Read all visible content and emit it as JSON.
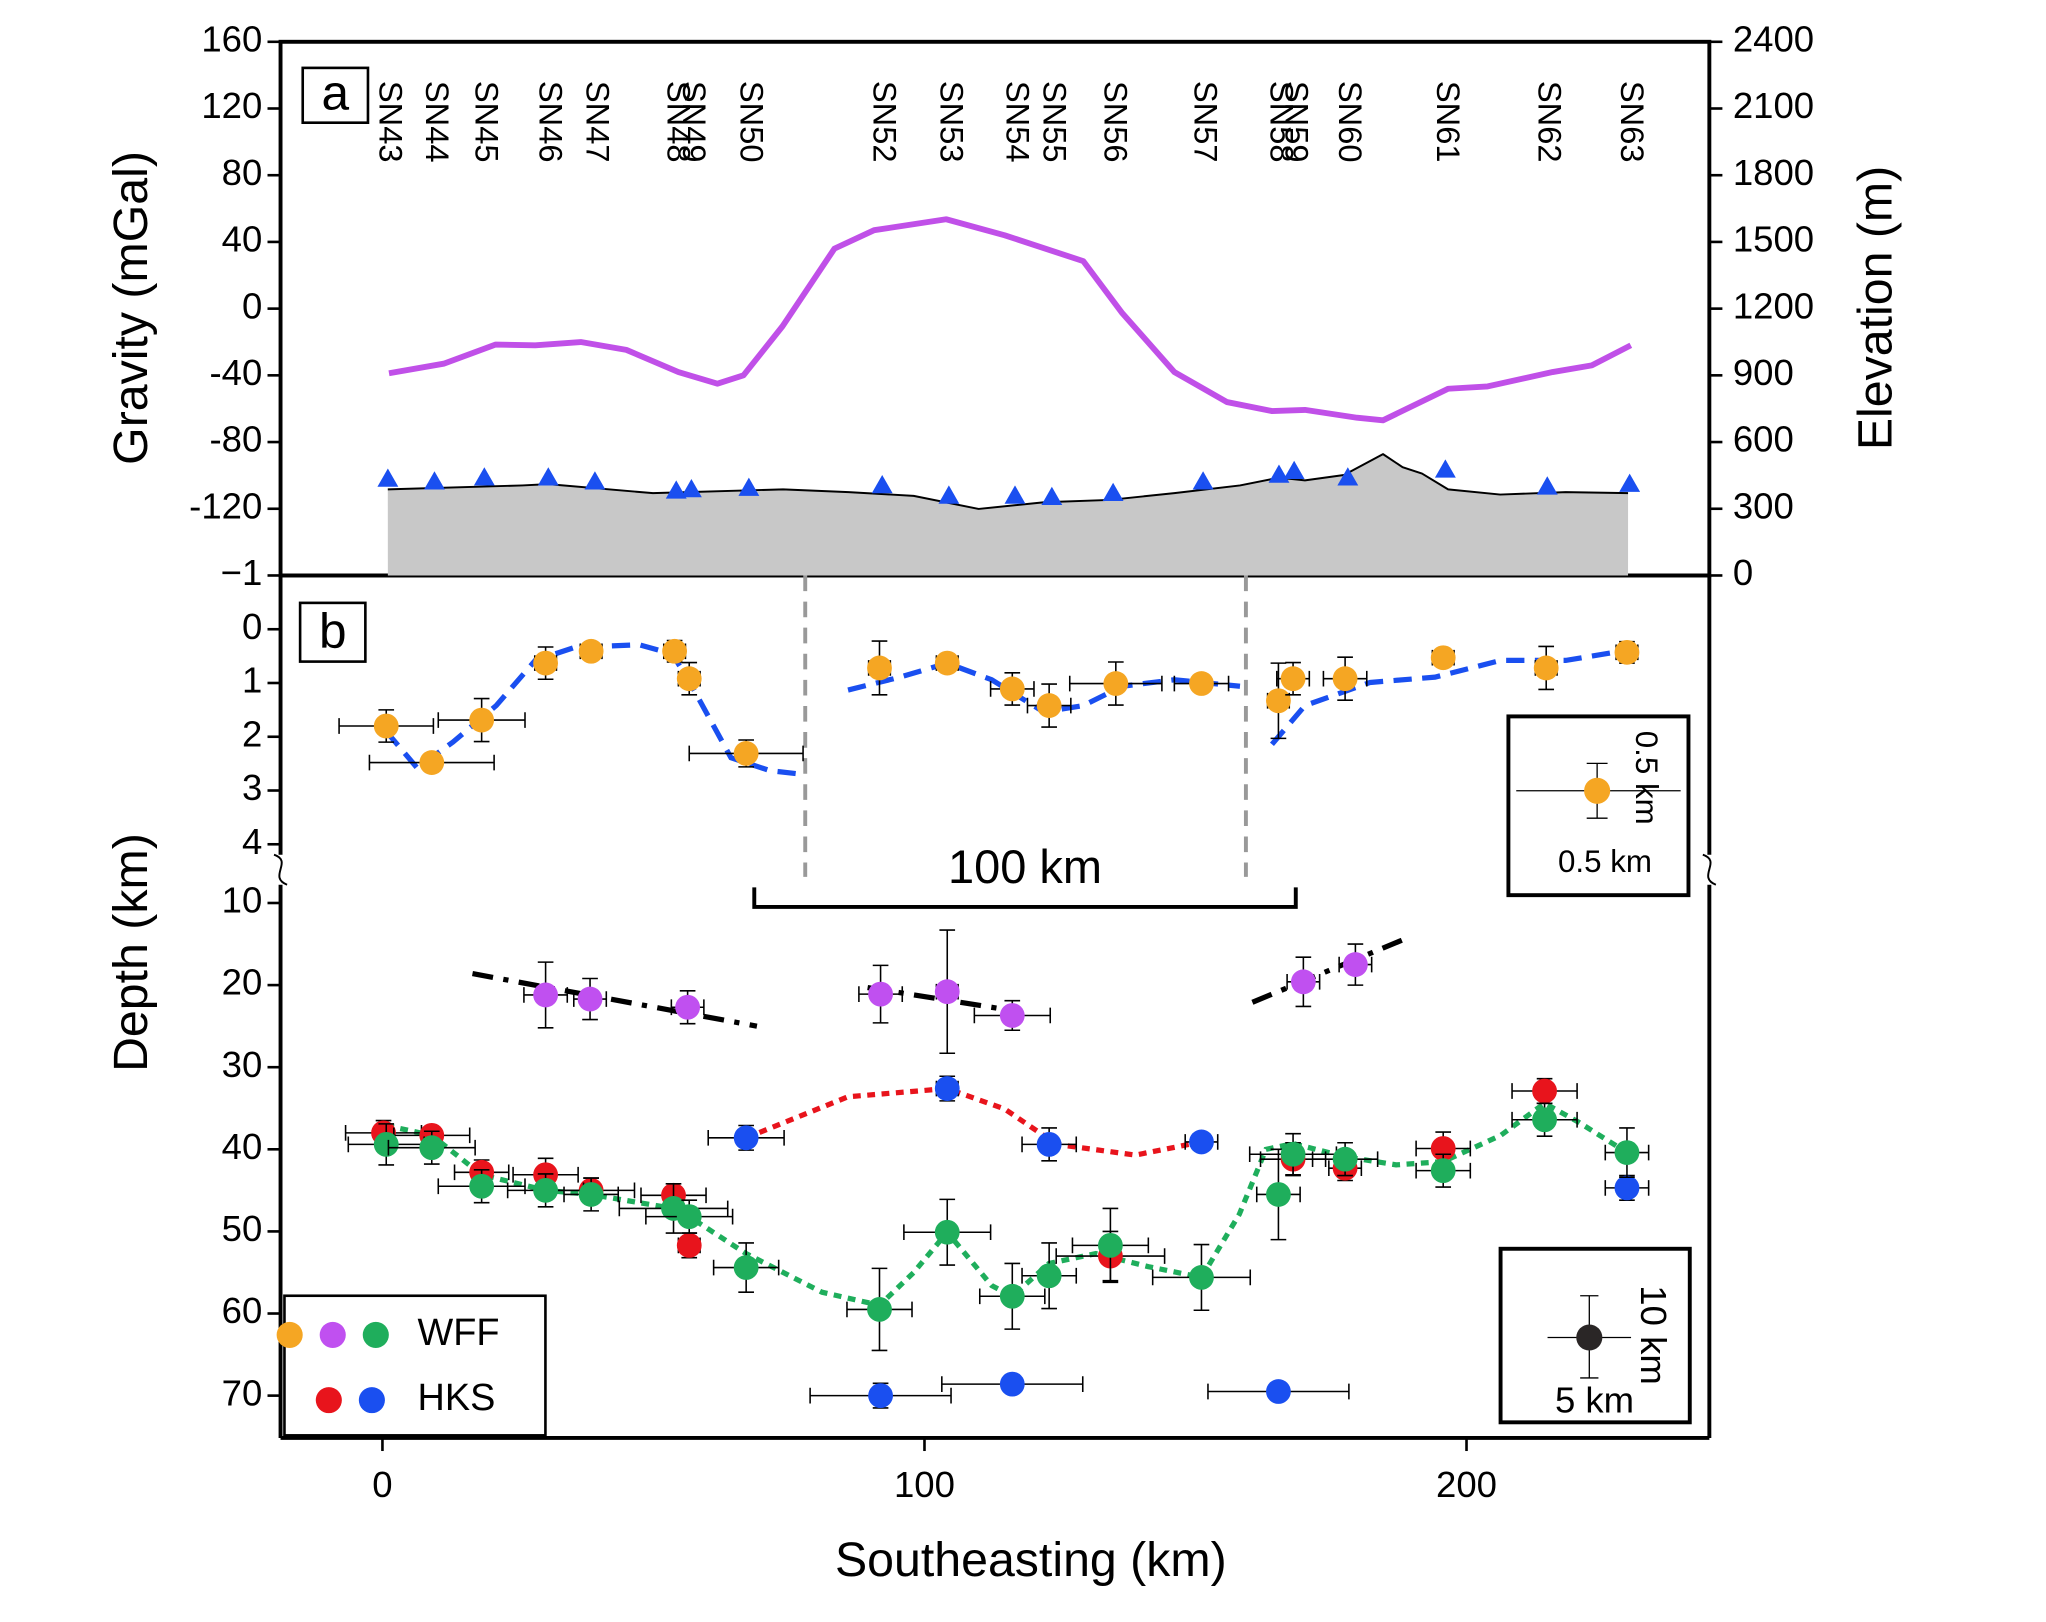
{
  "chart_data": [
    {
      "type": "line",
      "panel_label": "a",
      "ylabel": "Gravity (mGal)",
      "y2label": "Elevation (m)",
      "xlim": [
        -18.8,
        244.8
      ],
      "ylim": [
        -160,
        160
      ],
      "yticks": [
        160,
        120,
        80,
        40,
        0,
        -40,
        -80,
        -120
      ],
      "y2lim": [
        0,
        2400
      ],
      "y2ticks": [
        2400,
        2100,
        1800,
        1500,
        1200,
        900,
        600,
        300,
        0
      ],
      "series": [
        {
          "color": "#c050e8",
          "x": [
            1.2,
            11.3,
            20.9,
            28.2,
            36.6,
            45,
            54.6,
            61.8,
            66.6,
            73.8,
            83.4,
            90.7,
            104,
            114.8,
            129.3,
            136.5,
            146.1,
            155.8,
            164.1,
            170.2,
            179.8,
            184.6,
            196.6,
            203.9,
            215.9,
            223.1,
            230.3
          ],
          "values": [
            -38.7,
            -33,
            -21.5,
            -22,
            -20,
            -24.7,
            -38,
            -45,
            -40,
            -10.6,
            36,
            47,
            53.6,
            44,
            28.5,
            -2.7,
            -38,
            -56,
            -61.4,
            -60.7,
            -65.4,
            -67,
            -48,
            -46.6,
            -38,
            -34,
            -22
          ]
        },
        {
          "color": "#000000",
          "fill": "#c8c8c8",
          "axis": "y2",
          "x": [
            1,
            25.8,
            30.6,
            49.9,
            73.9,
            86,
            98,
            110,
            122.1,
            134.1,
            146.1,
            158.2,
            165.4,
            170.2,
            177.4,
            184.6,
            188.2,
            191.8,
            196.6,
            206.2,
            218.3,
            229.8
          ],
          "values": [
            387,
            405,
            411,
            370,
            387,
            375,
            358,
            299,
            329,
            340,
            370,
            405,
            440,
            428,
            452,
            546,
            487,
            458,
            387,
            364,
            375,
            370
          ]
        }
      ],
      "stations": {
        "color": "#1a4ff0",
        "axis": "y2",
        "labels": [
          "SN43",
          "SN44",
          "SN45",
          "SN46",
          "SN47",
          "SN48",
          "SN49",
          "SN50",
          "SN52",
          "SN53",
          "SN54",
          "SN55",
          "SN56",
          "SN57",
          "SN58",
          "SN59",
          "SN60",
          "SN61",
          "SN62",
          "SN63"
        ],
        "x": [
          1.0,
          9.6,
          18.8,
          30.6,
          39.2,
          54.2,
          57.0,
          67.6,
          92.2,
          104.5,
          116.7,
          123.5,
          134.8,
          151.4,
          165.4,
          168.2,
          178.1,
          196.1,
          214.9,
          230.1
        ],
        "values": [
          434,
          422,
          440,
          440,
          422,
          381,
          387,
          393,
          405,
          358,
          358,
          352,
          370,
          422,
          452,
          469,
          440,
          475,
          399,
          411
        ]
      }
    },
    {
      "type": "scatter",
      "panel_label": "b",
      "xlim": [
        -18.8,
        244.8
      ],
      "y_inverted": true,
      "ylim": [
        -1,
        4
      ],
      "yticks": [
        {
          "value": -1,
          "label": "−1"
        },
        0,
        1,
        2,
        3,
        4
      ],
      "series": [
        {
          "color": "#f5a623",
          "x": [
            0.7,
            9.1,
            18.3,
            30.1,
            38.5,
            53.9,
            56.6,
            67.1,
            91.7,
            104.2,
            116.2,
            123,
            135.3,
            151.1,
            165.3,
            168,
            177.6,
            195.7,
            214.7,
            229.6
          ],
          "values": [
            1.8,
            2.48,
            1.69,
            0.63,
            0.41,
            0.41,
            0.92,
            2.31,
            0.72,
            0.63,
            1.11,
            1.42,
            1.01,
            1.01,
            1.33,
            0.92,
            0.92,
            0.53,
            0.72,
            0.43
          ],
          "xerr": [
            8.7,
            11.5,
            8,
            2,
            2,
            2,
            2,
            10.5,
            2,
            2,
            4,
            4,
            8.5,
            5,
            2,
            3,
            4,
            2,
            2,
            2
          ],
          "yerr": [
            0.3,
            0.15,
            0.4,
            0.3,
            0.15,
            0.2,
            0.3,
            0.25,
            0.5,
            0.1,
            0.3,
            0.4,
            0.4,
            0.15,
            0.7,
            0.3,
            0.4,
            0.1,
            0.4,
            0.2
          ]
        }
      ],
      "lines": [
        {
          "color": "#1a4ff0",
          "dash": "14 8",
          "x": [
            0.7,
            6.4,
            13,
            21,
            28.2,
            35.4,
            47.4,
            53.5,
            57.1,
            64.3,
            71.5,
            77.5,
            78.7,
            85.9,
            95.5,
            104.2,
            112.4,
            122,
            129.3,
            136.5,
            146.1,
            158.2,
            160.1,
            164.1,
            170.2,
            182.2,
            194.2,
            206.3,
            218.3,
            229.6
          ],
          "values": [
            1.9,
            2.58,
            2.1,
            1.42,
            0.58,
            0.34,
            0.29,
            0.46,
            1.06,
            2.39,
            2.63,
            2.7,
            null,
            1.13,
            0.89,
            0.63,
            0.94,
            1.54,
            1.42,
            1.06,
            0.94,
            1.06,
            null,
            2.14,
            1.42,
            0.99,
            0.89,
            0.58,
            0.58,
            0.39
          ]
        }
      ],
      "vlines": {
        "color": "#999999",
        "x": [
          78,
          159.3
        ]
      },
      "scalebar": {
        "x": [
          68.6,
          168.5
        ],
        "label": "100 km"
      },
      "inset": {
        "labels": [
          "0.5 km",
          "0.5 km"
        ]
      }
    },
    {
      "type": "scatter",
      "ylabel": "Depth (km)",
      "xlabel": "Southeasting (km)",
      "xlim": [
        -18.8,
        244.8
      ],
      "xticks": [
        0,
        100,
        200
      ],
      "y_inverted": true,
      "ylim": [
        10,
        75
      ],
      "yticks": [
        10,
        20,
        30,
        40,
        50,
        60,
        70
      ],
      "series": [
        {
          "color": "#c050f0",
          "x": [
            30.1,
            38.3,
            56.3,
            91.9,
            104.2,
            116.2,
            169.9,
            179.5
          ],
          "values": [
            21.2,
            21.7,
            22.7,
            21.1,
            20.8,
            23.7,
            19.6,
            17.5
          ],
          "xerr": [
            4,
            3,
            3,
            4,
            2,
            7,
            3,
            3
          ],
          "yerr": [
            4,
            2.5,
            2,
            3.5,
            7.5,
            1.8,
            3,
            2.5
          ]
        },
        {
          "color": "#e8141c",
          "x": [
            0.2,
            9.1,
            18.3,
            30.1,
            38.5,
            53.7,
            56.6,
            134.3,
            168,
            177.6,
            195.7,
            214.4
          ],
          "values": [
            38.0,
            38.3,
            42.8,
            43.1,
            45,
            45.6,
            51.7,
            53,
            41.2,
            42.3,
            39.9,
            32.9
          ],
          "xerr": [
            7,
            7,
            5,
            6,
            8,
            6,
            2,
            10,
            6,
            3,
            5,
            6
          ],
          "yerr": [
            1.5,
            1,
            1.5,
            2,
            1.5,
            1,
            1.5,
            3,
            2,
            1.5,
            2,
            1.5
          ]
        },
        {
          "color": "#1a4ff0",
          "x": [
            67.1,
            104.2,
            123,
            151.1,
            229.6,
            91.9,
            116.2,
            165.3
          ],
          "values": [
            38.6,
            32.6,
            39.4,
            39.1,
            44.7,
            70,
            68.6,
            69.5
          ],
          "xerr": [
            7,
            2,
            5,
            3,
            4,
            13,
            13,
            13
          ],
          "yerr": [
            1.5,
            1.5,
            2,
            1,
            1.5,
            1.5,
            1,
            1
          ]
        },
        {
          "color": "#1fae5c",
          "x": [
            0.7,
            9.1,
            18.3,
            30.1,
            38.5,
            53.7,
            56.6,
            67.1,
            91.7,
            104.2,
            116.2,
            123,
            134.3,
            151.1,
            165.3,
            168,
            177.6,
            195.7,
            214.4,
            229.6
          ],
          "values": [
            39.4,
            39.8,
            44.5,
            45,
            45.5,
            47.2,
            48.2,
            54.4,
            59.5,
            50.1,
            57.9,
            55.4,
            51.7,
            55.6,
            45.5,
            40.6,
            41.2,
            42.6,
            36.4,
            40.4
          ],
          "xerr": [
            7,
            8,
            8,
            7,
            5,
            10,
            8,
            6,
            6,
            8,
            6,
            5,
            7,
            9,
            4,
            8,
            6,
            5,
            6,
            4
          ],
          "yerr": [
            2.5,
            2,
            2,
            2,
            2,
            3,
            2,
            3,
            5,
            4,
            4,
            4,
            4.5,
            4,
            5.5,
            2.5,
            2,
            2,
            2,
            3
          ]
        }
      ],
      "lines": [
        {
          "color": "#000000",
          "dash": "16 8 4 8",
          "x": [
            16.6,
            69.1
          ],
          "values": [
            18.6,
            25
          ]
        },
        {
          "color": "#000000",
          "dash": "16 8 4 8",
          "x": [
            89.5,
            114.3
          ],
          "values": [
            20.3,
            22.9
          ]
        },
        {
          "color": "#000000",
          "dash": "16 8 4 8",
          "x": [
            160.5,
            188.9
          ],
          "values": [
            22.1,
            14.3
          ]
        },
        {
          "color": "#e8141c",
          "dash": "6 5",
          "x": [
            67.1,
            85.9,
            104.2,
            114.8,
            124.4,
            138.9,
            151.1
          ],
          "values": [
            38.6,
            33.6,
            32.6,
            35.1,
            39.4,
            40.7,
            39.1
          ]
        },
        {
          "color": "#1fae5c",
          "dash": "6 5",
          "x": [
            0.7,
            9.1,
            18.3,
            30.1,
            38.5,
            53.7,
            56.6,
            67.1,
            81.1,
            91.7,
            98,
            104.2,
            112.4,
            116.2,
            123,
            131.6,
            141.3,
            151.1,
            158.1,
            163,
            168,
            177.6,
            187,
            195.7,
            206.3,
            214.4,
            220.7,
            229.6
          ],
          "values": [
            37.1,
            38.3,
            43.1,
            45,
            45.5,
            47.2,
            48.2,
            52.7,
            57.4,
            59,
            55,
            50.1,
            56.6,
            57.9,
            53.9,
            52.7,
            54.3,
            55.6,
            47.9,
            40,
            39.3,
            40.9,
            41.9,
            41.5,
            38.3,
            34.4,
            36.7,
            40.4
          ]
        }
      ],
      "legend": {
        "position": "lower left",
        "entries": [
          {
            "label": "WFF",
            "colors": [
              "#f5a623",
              "#c050f0",
              "#1fae5c"
            ]
          },
          {
            "label": "HKS",
            "colors": [
              "#e8141c",
              "#1a4ff0"
            ]
          }
        ]
      },
      "inset": {
        "labels": [
          "10 km",
          "5 km"
        ]
      }
    }
  ]
}
